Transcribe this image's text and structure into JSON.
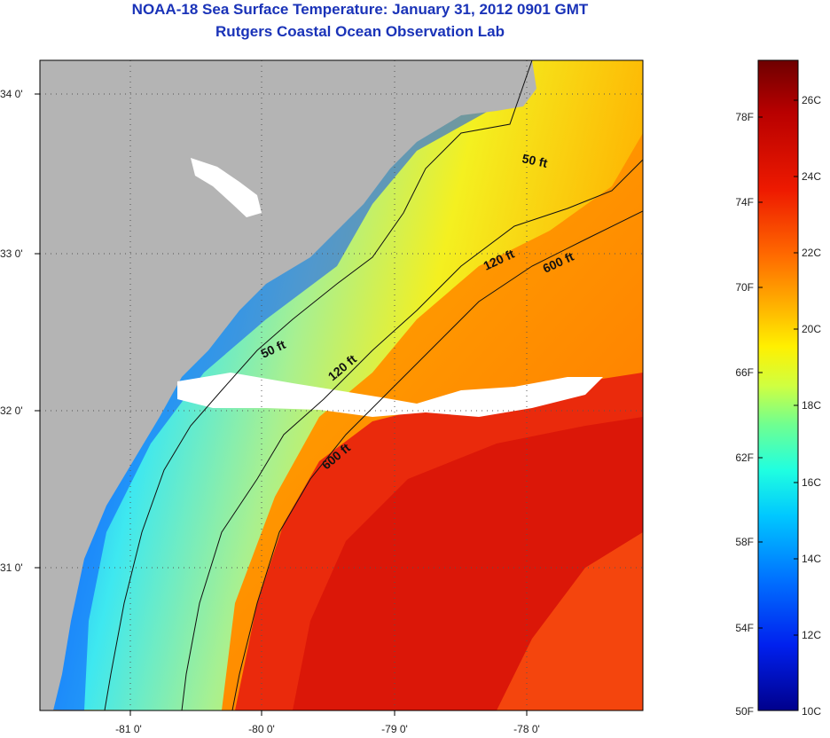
{
  "header": {
    "title": "NOAA-18 Sea Surface Temperature:  January 31, 2012 0901 GMT",
    "subtitle": "Rutgers Coastal Ocean Observation Lab"
  },
  "map": {
    "lon_ticks": [
      "-81 0'",
      "-80 0'",
      "-79 0'",
      "-78 0'"
    ],
    "lat_ticks": [
      "34 0'",
      "33 0'",
      "32 0'",
      "31 0'"
    ],
    "isobath_labels": [
      "50 ft",
      "120 ft",
      "600 ft",
      "50 ft",
      "120 ft",
      "600 ft"
    ]
  },
  "colorbar": {
    "fahrenheit_labels": [
      "78F",
      "74F",
      "70F",
      "66F",
      "62F",
      "58F",
      "54F",
      "50F"
    ],
    "celsius_labels": [
      "26C",
      "24C",
      "22C",
      "20C",
      "18C",
      "16C",
      "14C",
      "12C",
      "10C"
    ],
    "colors": [
      "#7a0000",
      "#c40000",
      "#ff2a00",
      "#ff7a00",
      "#ffd000",
      "#f0ff20",
      "#90ff70",
      "#30ffd0",
      "#00c8ff",
      "#0070ff",
      "#0020ff",
      "#0000a0"
    ]
  },
  "colors": {
    "land": "#b4b4b4",
    "title": "#1a33b8"
  }
}
